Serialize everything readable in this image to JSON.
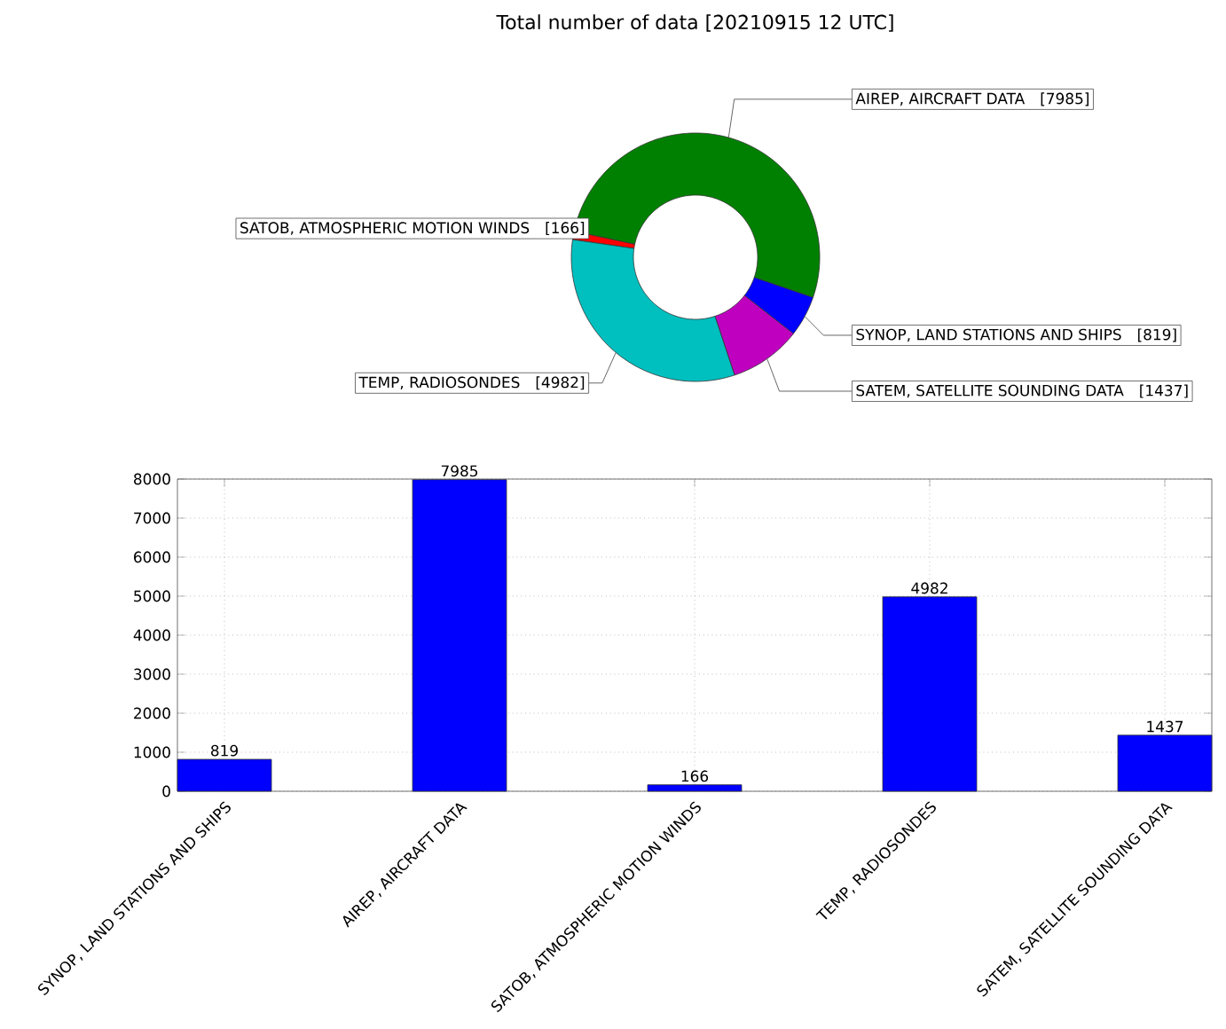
{
  "chart_data": [
    {
      "type": "donut",
      "title": "Total number of data [20210915 12 UTC]",
      "categories": [
        "SYNOP, LAND STATIONS AND SHIPS",
        "AIREP, AIRCRAFT DATA",
        "SATOB, ATMOSPHERIC MOTION WINDS",
        "TEMP,  RADIOSONDES",
        "SATEM, SATELLITE SOUNDING DATA"
      ],
      "values": [
        819,
        7985,
        166,
        4982,
        1437
      ],
      "colors": [
        "#0000ff",
        "#008000",
        "#ff0000",
        "#00bfbf",
        "#bf00bf"
      ],
      "value_labels": [
        "[819]",
        "[7985]",
        "[166]",
        "[4982]",
        "[1437]"
      ]
    },
    {
      "type": "bar",
      "categories": [
        "SYNOP, LAND STATIONS AND SHIPS",
        "AIREP, AIRCRAFT DATA",
        "SATOB, ATMOSPHERIC MOTION WINDS",
        "TEMP,  RADIOSONDES",
        "SATEM, SATELLITE SOUNDING DATA"
      ],
      "values": [
        819,
        7985,
        166,
        4982,
        1437
      ],
      "color": "#0000ff",
      "ylim": [
        0,
        8000
      ],
      "yticks": [
        0,
        1000,
        2000,
        3000,
        4000,
        5000,
        6000,
        7000,
        8000
      ],
      "grid": true,
      "data_labels": true
    }
  ]
}
